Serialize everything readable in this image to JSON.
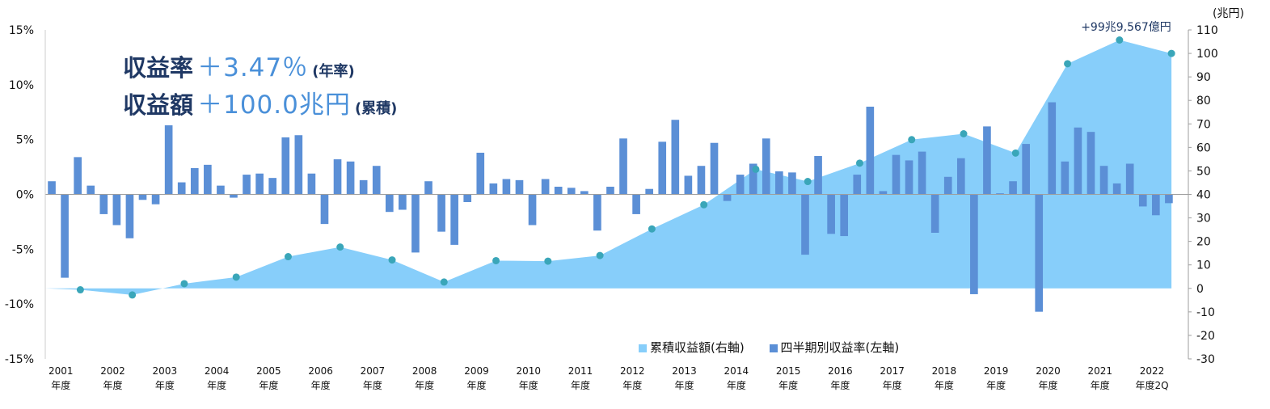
{
  "headline": {
    "rate_label": "収益率",
    "rate_value": "＋3.47％",
    "rate_note": "(年率)",
    "amount_label": "収益額",
    "amount_value": "＋100.0兆円",
    "amount_note": "(累積)"
  },
  "colors": {
    "area": "#87cefa",
    "bars": "#5b8fd6",
    "dots": "#3aa6b9",
    "headline_label": "#1f3864",
    "headline_value": "#4a90d9"
  },
  "chart_data": {
    "type": "bar+area",
    "legend": {
      "position": "bottom-right",
      "area_name": "累積収益額(右軸)",
      "bar_name": "四半期別収益率(左軸)"
    },
    "left_axis": {
      "ticks": [
        "15%",
        "10%",
        "5%",
        "0%",
        "-5%",
        "-10%",
        "-15%"
      ],
      "range": [
        -15,
        15
      ]
    },
    "right_axis": {
      "unit": "(兆円)",
      "ticks": [
        "110",
        "100",
        "90",
        "80",
        "70",
        "60",
        "50",
        "40",
        "30",
        "20",
        "10",
        "0",
        "-10",
        "-20",
        "-30"
      ],
      "range": [
        -30,
        110
      ]
    },
    "x_labels": [
      {
        "year": "2001",
        "suffix": "年度"
      },
      {
        "year": "2002",
        "suffix": "年度"
      },
      {
        "year": "2003",
        "suffix": "年度"
      },
      {
        "year": "2004",
        "suffix": "年度"
      },
      {
        "year": "2005",
        "suffix": "年度"
      },
      {
        "year": "2006",
        "suffix": "年度"
      },
      {
        "year": "2007",
        "suffix": "年度"
      },
      {
        "year": "2008",
        "suffix": "年度"
      },
      {
        "year": "2009",
        "suffix": "年度"
      },
      {
        "year": "2010",
        "suffix": "年度"
      },
      {
        "year": "2011",
        "suffix": "年度"
      },
      {
        "year": "2012",
        "suffix": "年度"
      },
      {
        "year": "2013",
        "suffix": "年度"
      },
      {
        "year": "2014",
        "suffix": "年度"
      },
      {
        "year": "2015",
        "suffix": "年度"
      },
      {
        "year": "2016",
        "suffix": "年度"
      },
      {
        "year": "2017",
        "suffix": "年度"
      },
      {
        "year": "2018",
        "suffix": "年度"
      },
      {
        "year": "2019",
        "suffix": "年度"
      },
      {
        "year": "2020",
        "suffix": "年度"
      },
      {
        "year": "2021",
        "suffix": "年度"
      },
      {
        "year": "2022",
        "suffix": "年度2Q"
      }
    ],
    "cumulative": [
      -0.6,
      -2.8,
      2.0,
      4.8,
      13.5,
      17.6,
      12.1,
      2.7,
      11.8,
      11.6,
      14.0,
      25.3,
      35.6,
      50.7,
      45.5,
      53.3,
      63.3,
      65.8,
      57.6,
      95.6,
      105.7,
      100.0
    ],
    "cumulative_annotation": "+99兆9,567億円",
    "quarterly": [
      1.2,
      -7.6,
      3.4,
      0.8,
      -1.8,
      -2.8,
      -4.0,
      -0.5,
      -0.9,
      6.3,
      1.1,
      2.4,
      2.7,
      0.8,
      -0.3,
      1.8,
      1.9,
      1.5,
      5.2,
      5.4,
      1.9,
      -2.7,
      3.2,
      3.0,
      1.3,
      2.6,
      -1.6,
      -1.4,
      -5.3,
      1.2,
      -3.4,
      -4.6,
      -0.7,
      3.8,
      1.0,
      1.4,
      1.3,
      -2.8,
      1.4,
      0.7,
      0.6,
      0.3,
      -3.3,
      0.7,
      5.1,
      -1.8,
      0.5,
      4.8,
      6.8,
      1.7,
      2.6,
      4.7,
      -0.6,
      1.8,
      2.8,
      5.1,
      2.1,
      2.0,
      -5.5,
      3.5,
      -3.6,
      -3.8,
      1.8,
      8.0,
      0.3,
      3.6,
      3.1,
      3.9,
      -3.5,
      1.6,
      3.3,
      -9.1,
      6.2,
      0.1,
      1.2,
      4.6,
      -10.7,
      8.4,
      3.0,
      6.1,
      5.7,
      2.6,
      1.0,
      2.8,
      -1.1,
      -1.9,
      -0.8
    ]
  }
}
